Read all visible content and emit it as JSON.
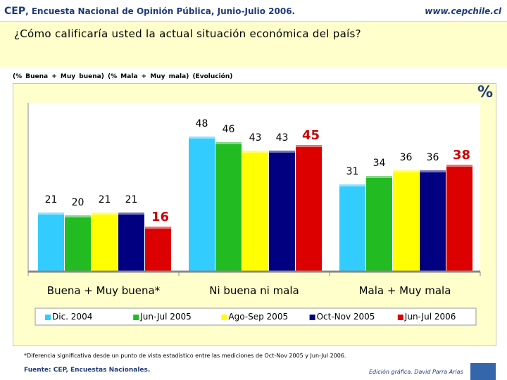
{
  "header": {
    "org": "CEP",
    "survey": ", Encuesta Nacional de Opinión Pública, Junio-Julio 2006.",
    "url": "www.cepchile.cl"
  },
  "question": "¿Cómo calificaría usted la actual situación económica del país?",
  "subtitle": "(% Buena + Muy buena)  (% Mala + Muy mala)  (Evolución)",
  "percent_symbol": "%",
  "footnote": "*Diferencia significativa desde un punto de vista estadístico entre las mediciones de Oct-Nov 2005 y Jun-Jul 2006.",
  "source": "Fuente: CEP, Encuestas Nacionales.",
  "credit": "Edición gráfica. David Parra Arias",
  "colors": {
    "panel_bg": "#ffffcc",
    "plot_bg": "#ffffff",
    "axis": "#888888",
    "accent_label": "#cc0000"
  },
  "chart_data": {
    "type": "bar",
    "categories": [
      "Buena + Muy buena*",
      "Ni buena ni mala",
      "Mala + Muy mala"
    ],
    "series": [
      {
        "name": "Dic. 2004",
        "color": "#33ccff",
        "values": [
          21,
          48,
          31
        ]
      },
      {
        "name": "Jun-Jul 2005",
        "color": "#22bb22",
        "values": [
          20,
          46,
          34
        ]
      },
      {
        "name": "Ago-Sep 2005",
        "color": "#ffff00",
        "values": [
          21,
          43,
          36
        ]
      },
      {
        "name": "Oct-Nov 2005",
        "color": "#000080",
        "values": [
          21,
          43,
          36
        ]
      },
      {
        "name": "Jun-Jul 2006",
        "color": "#dd0000",
        "values": [
          16,
          45,
          38
        ]
      }
    ],
    "ylim": [
      0,
      60
    ],
    "highlight_series": "Jun-Jul 2006",
    "legend_position": "bottom",
    "grid": false
  }
}
